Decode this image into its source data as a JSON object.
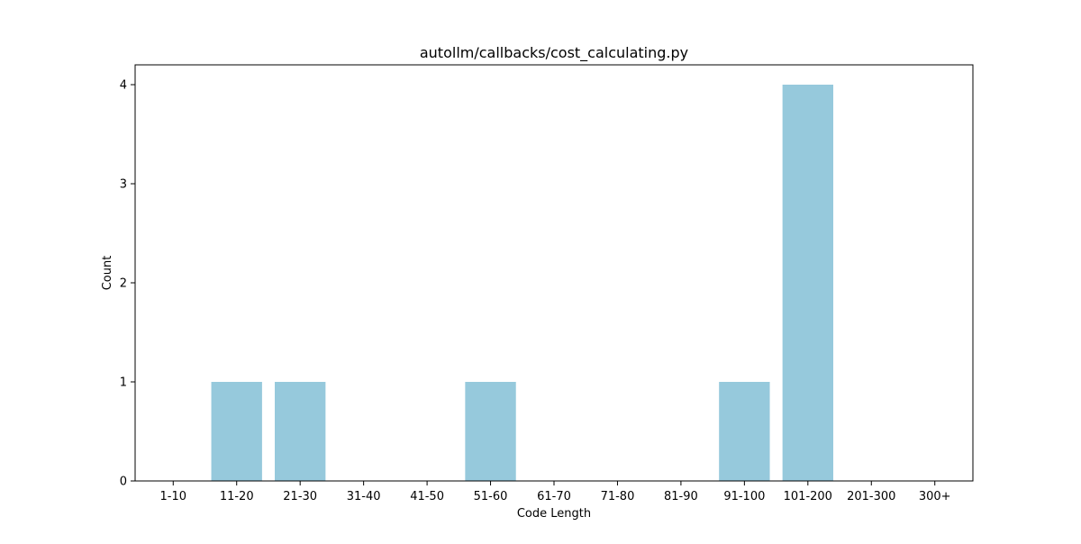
{
  "chart_data": {
    "type": "bar",
    "title": "autollm/callbacks/cost_calculating.py",
    "xlabel": "Code Length",
    "ylabel": "Count",
    "categories": [
      "1-10",
      "11-20",
      "21-30",
      "31-40",
      "41-50",
      "51-60",
      "61-70",
      "71-80",
      "81-90",
      "91-100",
      "101-200",
      "201-300",
      "300+"
    ],
    "values": [
      0,
      1,
      1,
      0,
      0,
      1,
      0,
      0,
      0,
      1,
      4,
      0,
      0
    ],
    "ylim": [
      0,
      4.2
    ],
    "yticks": [
      0,
      1,
      2,
      3,
      4
    ],
    "bar_color": "#96c9dc",
    "grid": false,
    "legend": "none"
  }
}
